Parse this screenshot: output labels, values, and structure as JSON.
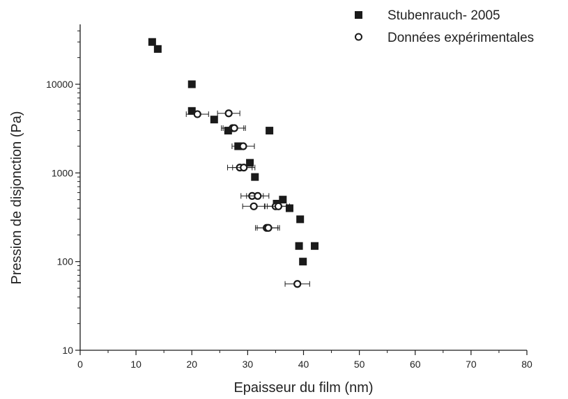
{
  "chart_data": {
    "type": "scatter",
    "xlabel": "Epaisseur du film (nm)",
    "ylabel": "Pression de disjonction (Pa)",
    "xlim": [
      0,
      80
    ],
    "ylim": [
      10,
      50000
    ],
    "yscale": "log",
    "grid": false,
    "legend_position": "top-right",
    "x_ticks": [
      0,
      10,
      20,
      30,
      40,
      50,
      60,
      70,
      80
    ],
    "x_tick_labels": [
      "0",
      "10",
      "20",
      "30",
      "40",
      "50",
      "60",
      "70",
      "80"
    ],
    "y_ticks": [
      10,
      100,
      1000,
      10000
    ],
    "y_tick_labels": [
      "10",
      "100",
      "1000",
      "10000"
    ],
    "series": [
      {
        "name": "Stubenrauch- 2005",
        "marker": "filled-square",
        "color": "#1a1a1a",
        "points": [
          {
            "x": 12.9,
            "y": 30000
          },
          {
            "x": 13.9,
            "y": 25000
          },
          {
            "x": 20.0,
            "y": 10000
          },
          {
            "x": 20.0,
            "y": 5000
          },
          {
            "x": 24.0,
            "y": 4000
          },
          {
            "x": 26.5,
            "y": 3000
          },
          {
            "x": 33.9,
            "y": 3000
          },
          {
            "x": 28.3,
            "y": 2000
          },
          {
            "x": 30.4,
            "y": 1300
          },
          {
            "x": 31.3,
            "y": 900
          },
          {
            "x": 36.3,
            "y": 500
          },
          {
            "x": 35.2,
            "y": 450
          },
          {
            "x": 37.5,
            "y": 400
          },
          {
            "x": 39.4,
            "y": 300
          },
          {
            "x": 39.2,
            "y": 150
          },
          {
            "x": 42.0,
            "y": 150
          },
          {
            "x": 39.9,
            "y": 100
          }
        ]
      },
      {
        "name": "Données expérimentales",
        "marker": "open-circle",
        "color": "#1a1a1a",
        "points": [
          {
            "x": 21.0,
            "y": 4600,
            "xerr": 2.0
          },
          {
            "x": 26.6,
            "y": 4700,
            "xerr": 2.0
          },
          {
            "x": 27.3,
            "y": 3200,
            "xerr": 2.0
          },
          {
            "x": 27.6,
            "y": 3200,
            "xerr": 2.0
          },
          {
            "x": 29.2,
            "y": 2000,
            "xerr": 2.0
          },
          {
            "x": 28.6,
            "y": 1150,
            "xerr": 2.2
          },
          {
            "x": 29.3,
            "y": 1150,
            "xerr": 2.0
          },
          {
            "x": 30.8,
            "y": 550,
            "xerr": 2.0
          },
          {
            "x": 31.8,
            "y": 550,
            "xerr": 2.0
          },
          {
            "x": 31.1,
            "y": 420,
            "xerr": 2.0
          },
          {
            "x": 35.0,
            "y": 420,
            "xerr": 2.0
          },
          {
            "x": 35.5,
            "y": 420,
            "xerr": 2.0
          },
          {
            "x": 33.4,
            "y": 240,
            "xerr": 2.0
          },
          {
            "x": 33.7,
            "y": 240,
            "xerr": 2.0
          },
          {
            "x": 38.9,
            "y": 56,
            "xerr": 2.2
          }
        ]
      }
    ]
  }
}
